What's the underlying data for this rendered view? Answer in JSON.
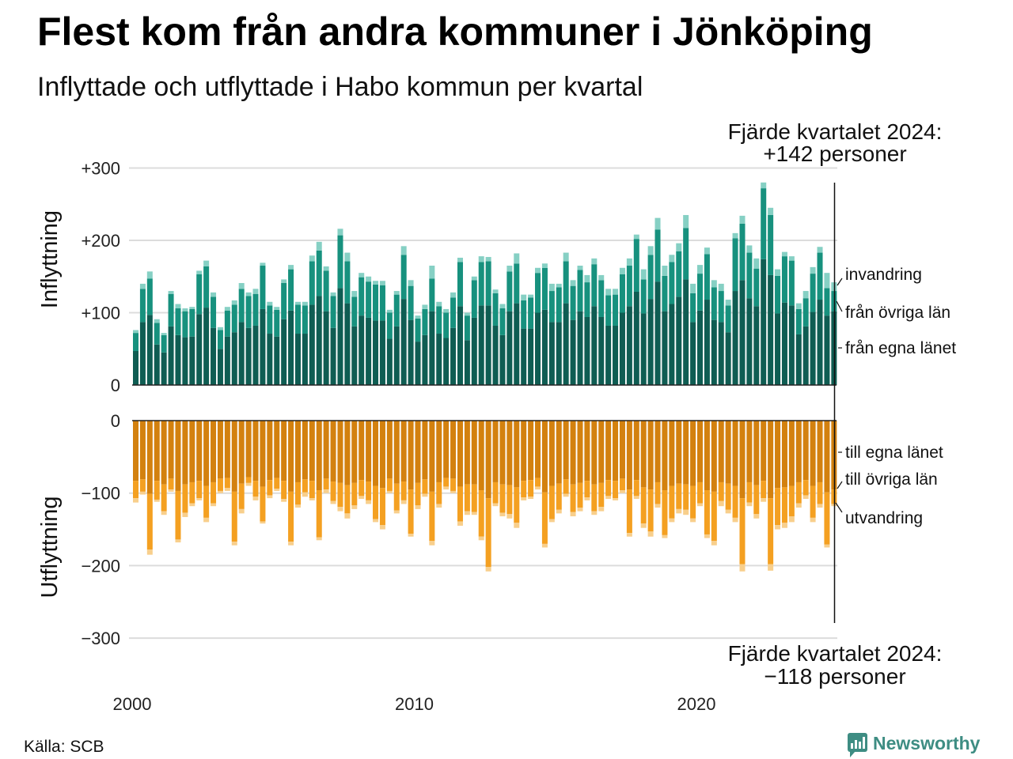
{
  "chart_data": {
    "type": "bar",
    "stacked": true,
    "title": "Flest kom från andra kommuner i Jönköping",
    "subtitle": "Inflyttade och utflyttade i Habo kommun per kvartal",
    "grid": true,
    "legend_position": "right",
    "x_ticks": [
      "2000",
      "2010",
      "2020"
    ],
    "x": [
      2000,
      2000.25,
      2000.5,
      2000.75,
      2001,
      2001.25,
      2001.5,
      2001.75,
      2002,
      2002.25,
      2002.5,
      2002.75,
      2003,
      2003.25,
      2003.5,
      2003.75,
      2004,
      2004.25,
      2004.5,
      2004.75,
      2005,
      2005.25,
      2005.5,
      2005.75,
      2006,
      2006.25,
      2006.5,
      2006.75,
      2007,
      2007.25,
      2007.5,
      2007.75,
      2008,
      2008.25,
      2008.5,
      2008.75,
      2009,
      2009.25,
      2009.5,
      2009.75,
      2010,
      2010.25,
      2010.5,
      2010.75,
      2011,
      2011.25,
      2011.5,
      2011.75,
      2012,
      2012.25,
      2012.5,
      2012.75,
      2013,
      2013.25,
      2013.5,
      2013.75,
      2014,
      2014.25,
      2014.5,
      2014.75,
      2015,
      2015.25,
      2015.5,
      2015.75,
      2016,
      2016.25,
      2016.5,
      2016.75,
      2017,
      2017.25,
      2017.5,
      2017.75,
      2018,
      2018.25,
      2018.5,
      2018.75,
      2019,
      2019.25,
      2019.5,
      2019.75,
      2020,
      2020.25,
      2020.5,
      2020.75,
      2021,
      2021.25,
      2021.5,
      2021.75,
      2022,
      2022.25,
      2022.5,
      2022.75,
      2023,
      2023.25,
      2023.5,
      2023.75,
      2024,
      2024.25,
      2024.5,
      2024.75
    ],
    "inflow": {
      "ylabel": "Inflyttning",
      "ylim": [
        0,
        300
      ],
      "y_ticks": [
        "+300",
        "+200",
        "+100",
        "0"
      ],
      "annotation": [
        "Fjärde kvartalet 2024:",
        "+142 personer"
      ],
      "series": [
        {
          "name": "från egna länet",
          "color": "#0f5d53",
          "values": [
            47,
            87,
            97,
            56,
            45,
            81,
            69,
            66,
            67,
            98,
            107,
            79,
            50,
            67,
            73,
            87,
            79,
            82,
            105,
            71,
            67,
            91,
            103,
            71,
            71,
            111,
            123,
            102,
            79,
            134,
            113,
            81,
            96,
            93,
            89,
            89,
            64,
            81,
            119,
            90,
            60,
            69,
            102,
            71,
            65,
            79,
            109,
            62,
            93,
            110,
            110,
            82,
            69,
            102,
            113,
            78,
            78,
            100,
            104,
            87,
            87,
            113,
            90,
            102,
            94,
            109,
            94,
            82,
            82,
            100,
            109,
            129,
            99,
            119,
            143,
            102,
            112,
            122,
            146,
            87,
            103,
            118,
            90,
            87,
            73,
            130,
            145,
            120,
            109,
            174,
            152,
            99,
            114,
            110,
            70,
            81,
            101,
            118,
            96,
            102
          ]
        },
        {
          "name": "från övriga län",
          "color": "#17917e",
          "values": [
            25,
            46,
            50,
            30,
            24,
            45,
            37,
            36,
            38,
            55,
            57,
            43,
            26,
            36,
            38,
            46,
            44,
            44,
            60,
            39,
            37,
            50,
            57,
            40,
            39,
            60,
            63,
            56,
            44,
            73,
            58,
            41,
            53,
            50,
            50,
            49,
            36,
            44,
            61,
            47,
            32,
            36,
            45,
            38,
            35,
            42,
            61,
            34,
            52,
            60,
            61,
            45,
            37,
            55,
            55,
            39,
            43,
            55,
            58,
            43,
            48,
            58,
            47,
            57,
            48,
            58,
            51,
            42,
            43,
            53,
            56,
            73,
            47,
            61,
            72,
            49,
            58,
            63,
            71,
            40,
            51,
            63,
            45,
            43,
            37,
            73,
            78,
            63,
            52,
            98,
            83,
            52,
            64,
            62,
            35,
            39,
            53,
            65,
            38,
            28
          ]
        },
        {
          "name": "invandring",
          "color": "#86d0c4",
          "values": [
            4,
            7,
            10,
            5,
            3,
            4,
            6,
            4,
            3,
            5,
            8,
            6,
            4,
            5,
            6,
            8,
            5,
            7,
            4,
            5,
            4,
            5,
            6,
            4,
            5,
            8,
            12,
            6,
            5,
            9,
            12,
            8,
            6,
            7,
            5,
            6,
            4,
            5,
            12,
            8,
            4,
            6,
            18,
            6,
            5,
            7,
            6,
            4,
            5,
            8,
            6,
            5,
            6,
            8,
            14,
            8,
            4,
            7,
            6,
            10,
            5,
            12,
            8,
            6,
            10,
            8,
            7,
            9,
            8,
            9,
            10,
            6,
            14,
            12,
            16,
            14,
            10,
            11,
            18,
            13,
            12,
            9,
            10,
            10,
            8,
            7,
            11,
            10,
            14,
            8,
            10,
            9,
            6,
            6,
            8,
            10,
            9,
            8,
            21,
            12
          ]
        }
      ]
    },
    "outflow": {
      "ylabel": "Utflyttning",
      "ylim": [
        -300,
        0
      ],
      "y_ticks": [
        "0",
        "−100",
        "−200",
        "−300"
      ],
      "annotation": [
        "Fjärde kvartalet 2024:",
        "−118 personer"
      ],
      "series": [
        {
          "name": "till egna länet",
          "color": "#d3810f",
          "values": [
            -83,
            -81,
            -101,
            -83,
            -88,
            -80,
            -97,
            -88,
            -85,
            -83,
            -90,
            -85,
            -80,
            -79,
            -98,
            -87,
            -78,
            -83,
            -91,
            -82,
            -79,
            -83,
            -98,
            -85,
            -81,
            -83,
            -96,
            -80,
            -84,
            -86,
            -89,
            -86,
            -82,
            -84,
            -90,
            -93,
            -80,
            -87,
            -84,
            -95,
            -86,
            -81,
            -98,
            -85,
            -79,
            -80,
            -91,
            -88,
            -88,
            -96,
            -107,
            -85,
            -88,
            -89,
            -92,
            -83,
            -82,
            -79,
            -99,
            -90,
            -87,
            -81,
            -88,
            -86,
            -83,
            -88,
            -86,
            -82,
            -83,
            -80,
            -95,
            -82,
            -92,
            -95,
            -85,
            -96,
            -90,
            -87,
            -88,
            -90,
            -85,
            -96,
            -98,
            -85,
            -87,
            -90,
            -107,
            -85,
            -89,
            -83,
            -107,
            -93,
            -92,
            -90,
            -85,
            -82,
            -90,
            -85,
            -99,
            -95
          ]
        },
        {
          "name": "till övriga län",
          "color": "#f4a021",
          "values": [
            -24,
            -17,
            -77,
            -26,
            -37,
            -15,
            -67,
            -39,
            -29,
            -24,
            -44,
            -29,
            -17,
            -14,
            -69,
            -35,
            -8,
            -22,
            -48,
            -21,
            -15,
            -25,
            -69,
            -31,
            -18,
            -24,
            -65,
            -15,
            -27,
            -33,
            -39,
            -31,
            -22,
            -26,
            -46,
            -51,
            -17,
            -37,
            -26,
            -61,
            -31,
            -20,
            -68,
            -30,
            -12,
            -17,
            -48,
            -37,
            -38,
            -64,
            -95,
            -29,
            -39,
            -40,
            -49,
            -23,
            -23,
            -12,
            -71,
            -46,
            -36,
            -20,
            -38,
            -34,
            -23,
            -37,
            -33,
            -22,
            -24,
            -16,
            -60,
            -22,
            -50,
            -58,
            -30,
            -62,
            -45,
            -35,
            -35,
            -45,
            -29,
            -61,
            -68,
            -26,
            -36,
            -44,
            -91,
            -28,
            -40,
            -24,
            -91,
            -51,
            -49,
            -42,
            -29,
            -21,
            -44,
            -30,
            -72,
            -20
          ]
        },
        {
          "name": "utvandring",
          "color": "#f8cf8c",
          "values": [
            -6,
            -4,
            -7,
            -3,
            -5,
            -3,
            -4,
            -6,
            -4,
            -3,
            -6,
            -4,
            -3,
            -4,
            -5,
            -6,
            -4,
            -5,
            -3,
            -4,
            -3,
            -4,
            -5,
            -4,
            -6,
            -3,
            -4,
            -5,
            -4,
            -6,
            -7,
            -5,
            -4,
            -5,
            -4,
            -6,
            -3,
            -4,
            -5,
            -4,
            -5,
            -4,
            -6,
            -5,
            -4,
            -3,
            -6,
            -5,
            -4,
            -5,
            -6,
            -4,
            -5,
            -6,
            -7,
            -4,
            -3,
            -4,
            -5,
            -4,
            -5,
            -4,
            -6,
            -5,
            -4,
            -5,
            -6,
            -4,
            -3,
            -4,
            -5,
            -4,
            -6,
            -7,
            -5,
            -4,
            -5,
            -6,
            -7,
            -5,
            -4,
            -5,
            -6,
            -7,
            -5,
            -6,
            -10,
            -5,
            -6,
            -5,
            -9,
            -6,
            -7,
            -8,
            -6,
            -5,
            -6,
            -5,
            -4,
            -3
          ]
        }
      ]
    }
  },
  "source": "Källa: SCB",
  "brand": {
    "name": "Newsworthy",
    "color": "#3e8d83",
    "icon": "bar-chart-speech-bubble-icon"
  },
  "colors": {
    "text": "#111111",
    "grid": "#dcdcdc",
    "axis": "#222222"
  }
}
